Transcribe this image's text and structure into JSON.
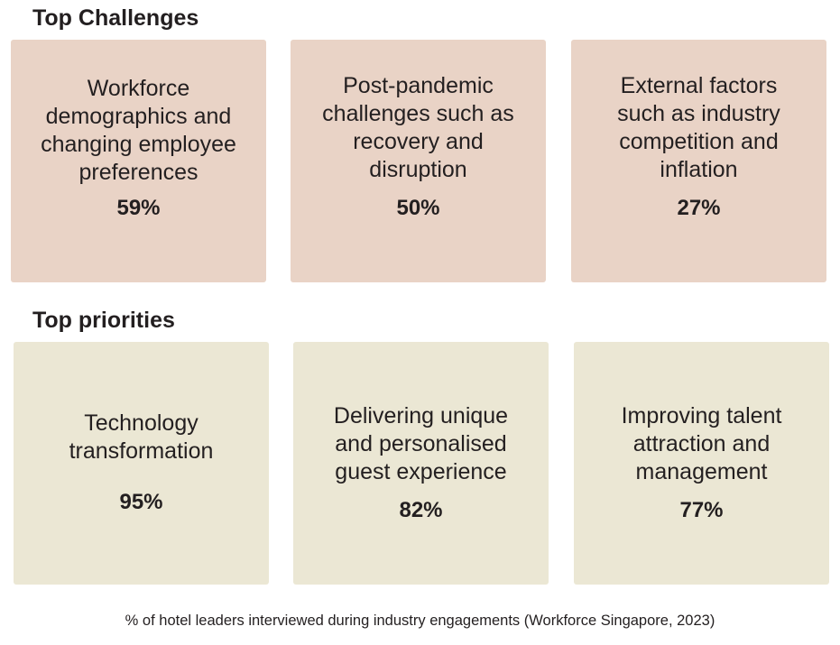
{
  "challenges": {
    "title": "Top Challenges",
    "items": [
      {
        "text": "Workforce demographics and changing employee preferences",
        "lines": [
          "Workforce",
          "demographics and",
          "changing employee",
          "preferences"
        ],
        "percent": "59%"
      },
      {
        "text": "Post-pandemic challenges such as recovery and disruption",
        "lines": [
          "Post-pandemic",
          "challenges such as",
          "recovery and",
          "disruption"
        ],
        "percent": "50%"
      },
      {
        "text": "External factors such as industry competition and inflation",
        "lines": [
          "External factors",
          "such as industry",
          "competition and",
          "inflation"
        ],
        "percent": "27%"
      }
    ]
  },
  "priorities": {
    "title": "Top priorities",
    "items": [
      {
        "lines": [
          "Technology",
          "transformation"
        ],
        "percent": "95%"
      },
      {
        "lines": [
          "Delivering unique",
          "and personalised",
          "guest experience"
        ],
        "percent": "82%"
      },
      {
        "lines": [
          "Improving talent",
          "attraction and",
          "management"
        ],
        "percent": "77%"
      }
    ]
  },
  "footnote": "% of hotel leaders interviewed during industry engagements (Workforce Singapore, 2023)",
  "colors": {
    "challenge_box": "#e9d3c6",
    "priority_box": "#ebe7d4",
    "text": "#231f20"
  }
}
